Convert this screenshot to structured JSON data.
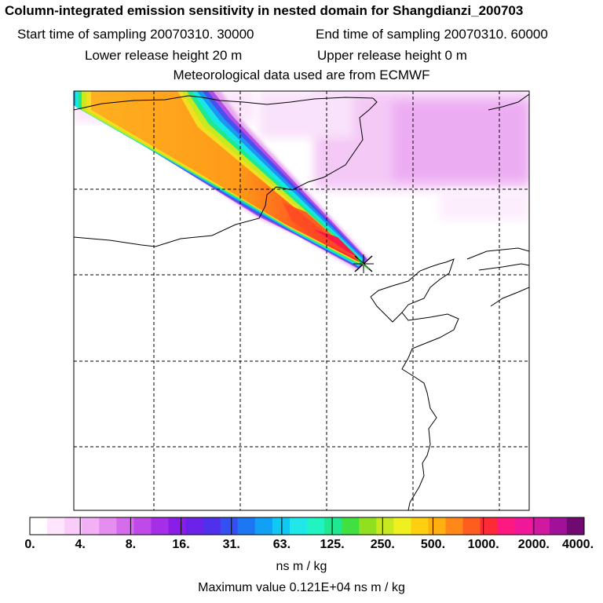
{
  "header": {
    "title": "Column-integrated emission sensitivity in nested domain for Shangdianzi_200703",
    "start_time": "Start time of sampling 20070310. 30000",
    "end_time": "End time of sampling 20070310. 60000",
    "lower_release": "Lower release height   20 m",
    "upper_release": "Upper release height    0 m",
    "met_data": "Meteorological data used are from ECMWF"
  },
  "colorbar": {
    "labels": [
      "0.",
      "4.",
      "8.",
      "16.",
      "31.",
      "63.",
      "125.",
      "250.",
      "500.",
      "1000.",
      "2000.",
      "4000."
    ],
    "units": "ns m / kg",
    "colors": [
      "#ffffff",
      "#fde6fd",
      "#f9ccf9",
      "#f3b0f5",
      "#e58ef0",
      "#d56cec",
      "#c04ae8",
      "#a52ee6",
      "#8a1ee6",
      "#6c22e8",
      "#5030ec",
      "#3450f0",
      "#1c78f2",
      "#10a0f4",
      "#10c8f2",
      "#20e8e8",
      "#20f4c0",
      "#20e890",
      "#40e040",
      "#90e020",
      "#c8e820",
      "#f0f020",
      "#ffd010",
      "#ffb010",
      "#ff8818",
      "#ff5c20",
      "#ff2a38",
      "#ff1880",
      "#f01898",
      "#d018a0",
      "#a01098",
      "#700a70"
    ]
  },
  "map": {
    "receptor_marker": "receptor-cross"
  },
  "footer": {
    "max_value": "Maximum value  0.121E+04 ns m / kg"
  }
}
